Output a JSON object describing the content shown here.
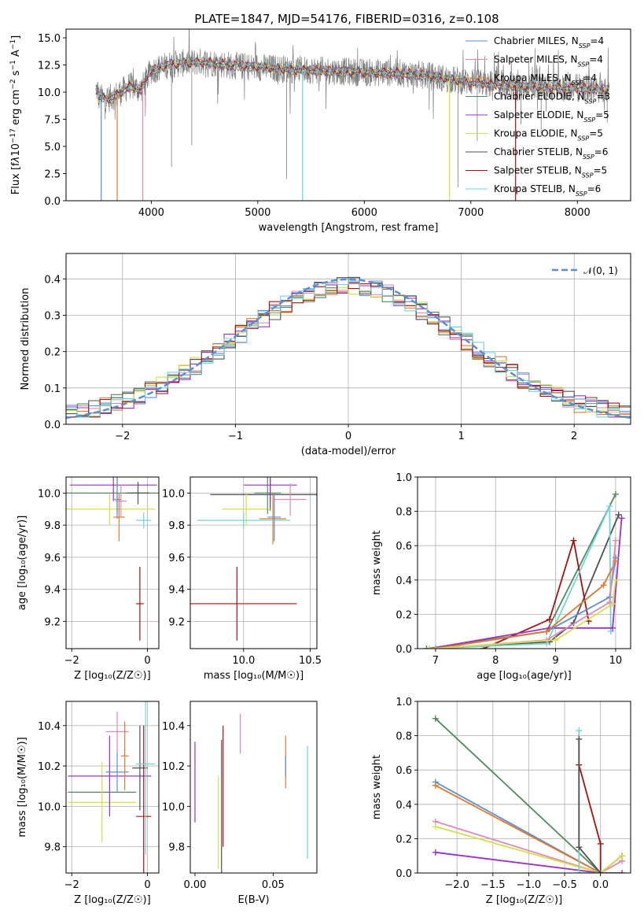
{
  "figure_title": "PLATE=1847, MJD=54176, FIBERID=0316, z=0.108",
  "colors": {
    "chabrier_miles": "#5b8ed6",
    "salpeter_miles": "#e08ab3",
    "kroupa_miles": "#e07a2a",
    "chabrier_elodie": "#4f8a5e",
    "salpeter_elodie": "#9b30c9",
    "kroupa_elodie": "#d4e04a",
    "chabrier_stelib": "#505050",
    "salpeter_stelib": "#a81010",
    "kroupa_stelib": "#6fd5d5",
    "data": "#808080",
    "grid": "#b0b0b0",
    "gaussian": "#5b8ed6"
  },
  "chart_data": [
    {
      "id": "spectrum",
      "type": "line",
      "xlabel": "wavelength [Angstrom, rest frame]",
      "ylabel_html": "Flux [f<tspan font-style='italic'>λ</tspan>10<tspan baseline-shift='super' font-size='9'>−17</tspan> erg cm<tspan baseline-shift='super' font-size='9'>−2</tspan> s<tspan baseline-shift='super' font-size='9'>−1</tspan> A<tspan baseline-shift='super' font-size='9'>−1</tspan>]",
      "xlim": [
        3200,
        8500
      ],
      "ylim": [
        0,
        15.8
      ],
      "xticks": [
        4000,
        5000,
        6000,
        7000,
        8000
      ],
      "yticks": [
        0.0,
        2.5,
        5.0,
        7.5,
        10.0,
        12.5,
        15.0
      ],
      "legend": "top-right",
      "series": [
        {
          "key": "chabrier_miles",
          "label": "Chabrier MILES, N",
          "sub": "SSP",
          "val": "=4"
        },
        {
          "key": "salpeter_miles",
          "label": "Salpeter MILES, N",
          "sub": "SSP",
          "val": "=4"
        },
        {
          "key": "kroupa_miles",
          "label": "Kroupa MILES, N",
          "sub": "SSP",
          "val": "=4"
        },
        {
          "key": "chabrier_elodie",
          "label": "Chabrier ELODIE, N",
          "sub": "SSP",
          "val": "=3"
        },
        {
          "key": "salpeter_elodie",
          "label": "Salpeter ELODIE, N",
          "sub": "SSP",
          "val": "=5"
        },
        {
          "key": "kroupa_elodie",
          "label": "Kroupa ELODIE, N",
          "sub": "SSP",
          "val": "=5"
        },
        {
          "key": "chabrier_stelib",
          "label": "Chabrier STELIB, N",
          "sub": "SSP",
          "val": "=6"
        },
        {
          "key": "salpeter_stelib",
          "label": "Salpeter STELIB, N",
          "sub": "SSP",
          "val": "=5"
        },
        {
          "key": "kroupa_stelib",
          "label": "Kroupa STELIB, N",
          "sub": "SSP",
          "val": "=6"
        }
      ],
      "continuum": [
        [
          3500,
          9.5
        ],
        [
          3600,
          9.4
        ],
        [
          3700,
          9.9
        ],
        [
          3800,
          10.6
        ],
        [
          3900,
          10.2
        ],
        [
          4000,
          12.0
        ],
        [
          4200,
          12.6
        ],
        [
          4500,
          12.8
        ],
        [
          4800,
          12.4
        ],
        [
          5000,
          12.3
        ],
        [
          5300,
          12.1
        ],
        [
          5600,
          12.0
        ],
        [
          6000,
          11.8
        ],
        [
          6300,
          11.8
        ],
        [
          6600,
          11.5
        ],
        [
          7000,
          10.9
        ],
        [
          7500,
          10.5
        ],
        [
          8000,
          10.4
        ],
        [
          8300,
          10.2
        ]
      ],
      "model_dips": [
        {
          "key": "chabrier_miles",
          "x": 3530,
          "y": 0.0
        },
        {
          "key": "kroupa_miles",
          "x": 3680,
          "y": 0.0
        },
        {
          "key": "salpeter_miles",
          "x": 3920,
          "y": 0.0
        },
        {
          "key": "kroupa_stelib",
          "x": 5420,
          "y": 0.0
        },
        {
          "key": "kroupa_elodie",
          "x": 6800,
          "y": 0.0
        },
        {
          "key": "salpeter_stelib",
          "x": 7420,
          "y": 0.0
        }
      ]
    },
    {
      "id": "residuals",
      "type": "line",
      "xlabel": "(data-model)/error",
      "ylabel": "Normed distribution",
      "xlim": [
        -2.5,
        2.5
      ],
      "ylim": [
        0,
        0.47
      ],
      "xticks": [
        -2,
        -1,
        0,
        1,
        2
      ],
      "yticks": [
        0.0,
        0.1,
        0.2,
        0.3,
        0.4
      ],
      "xtick_labels": [
        "−2",
        "−1",
        "0",
        "1",
        "2"
      ],
      "ytick_labels": [
        "0.0",
        "0.1",
        "0.2",
        "0.3",
        "0.4"
      ],
      "grid": true,
      "legend": "top-right",
      "legend_label": "𝒩(0, 1)",
      "bin_width": 0.1,
      "bin_start": -2.5
    },
    {
      "id": "age_vs_Z",
      "type": "scatter",
      "xlabel": "Z [log₁₀(Z/Z☉)]",
      "ylabel": "age  [log₁₀(age/yr)]",
      "xlim": [
        -2.15,
        0.3
      ],
      "ylim": [
        9.03,
        10.1
      ],
      "xticks": [
        -2,
        0
      ],
      "xtick_labels": [
        "−2",
        "0"
      ],
      "yticks": [
        9.2,
        9.4,
        9.6,
        9.8,
        10.0
      ],
      "ytick_labels": [
        "9.2",
        "9.4",
        "9.6",
        "9.8",
        "10.0"
      ],
      "grid": true,
      "points": [
        {
          "key": "kroupa_elodie",
          "x": -1.0,
          "y": 9.9,
          "xerr": 1.2,
          "yerr": 0.1
        },
        {
          "key": "chabrier_elodie",
          "x": -0.8,
          "y": 10.0,
          "xerr": 1.35,
          "yerr": 0.13
        },
        {
          "key": "salpeter_elodie",
          "x": -0.9,
          "y": 10.05,
          "xerr": 1.15,
          "yerr": 0.1
        },
        {
          "key": "chabrier_miles",
          "x": -0.8,
          "y": 9.96,
          "xerr": 0.1,
          "yerr": 0.12
        },
        {
          "key": "salpeter_miles",
          "x": -0.7,
          "y": 9.95,
          "xerr": 0.15,
          "yerr": 0.1
        },
        {
          "key": "kroupa_miles",
          "x": -0.75,
          "y": 9.85,
          "xerr": 0.15,
          "yerr": 0.15
        },
        {
          "key": "chabrier_stelib",
          "x": -0.25,
          "y": 10.0,
          "xerr": 0.3,
          "yerr": 0.07
        },
        {
          "key": "salpeter_stelib",
          "x": -0.2,
          "y": 9.31,
          "xerr": 0.1,
          "yerr": 0.23
        },
        {
          "key": "kroupa_stelib",
          "x": -0.1,
          "y": 9.83,
          "xerr": 0.2,
          "yerr": 0.05
        }
      ]
    },
    {
      "id": "age_vs_mass",
      "type": "scatter",
      "xlabel": "mass [log₁₀(M/M☉)]",
      "xlim": [
        9.6,
        10.55
      ],
      "ylim": [
        9.03,
        10.1
      ],
      "xticks": [
        10.0,
        10.5
      ],
      "xtick_labels": [
        "10.0",
        "10.5"
      ],
      "yticks": [
        9.2,
        9.4,
        9.6,
        9.8,
        10.0
      ],
      "ytick_labels": [
        "9.2",
        "9.4",
        "9.6",
        "9.8",
        "10.0"
      ],
      "grid": true,
      "points": [
        {
          "key": "chabrier_stelib",
          "x": 10.2,
          "y": 9.99,
          "xerr": 0.45,
          "yerr": 0.1
        },
        {
          "key": "kroupa_elodie",
          "x": 10.02,
          "y": 9.9,
          "xerr": 0.18,
          "yerr": 0.1
        },
        {
          "key": "chabrier_elodie",
          "x": 10.18,
          "y": 10.0,
          "xerr": 0.1,
          "yerr": 0.13
        },
        {
          "key": "salpeter_elodie",
          "x": 10.2,
          "y": 10.05,
          "xerr": 0.2,
          "yerr": 0.1
        },
        {
          "key": "salpeter_miles",
          "x": 10.35,
          "y": 9.96,
          "xerr": 0.12,
          "yerr": 0.1
        },
        {
          "key": "kroupa_miles",
          "x": 10.22,
          "y": 9.84,
          "xerr": 0.1,
          "yerr": 0.16
        },
        {
          "key": "kroupa_stelib",
          "x": 10.0,
          "y": 9.83,
          "xerr": 0.35,
          "yerr": 0.05
        },
        {
          "key": "salpeter_stelib",
          "x": 9.95,
          "y": 9.31,
          "xerr": 0.45,
          "yerr": 0.23
        },
        {
          "key": "chabrier_miles",
          "x": 10.23,
          "y": 9.85,
          "xerr": 0.05,
          "yerr": 0.15
        }
      ]
    },
    {
      "id": "weight_vs_age",
      "type": "line",
      "xlabel": "age  [log₁₀(age/yr)]",
      "ylabel": "mass weight",
      "xlim": [
        6.7,
        10.25
      ],
      "ylim": [
        0,
        1.0
      ],
      "xticks": [
        7,
        8,
        9,
        10
      ],
      "xtick_labels": [
        "7",
        "8",
        "9",
        "10"
      ],
      "yticks": [
        0.0,
        0.2,
        0.4,
        0.6,
        0.8,
        1.0
      ],
      "ytick_labels": [
        "0.0",
        "0.2",
        "0.4",
        "0.6",
        "0.8",
        "1.0"
      ],
      "grid": true,
      "series": [
        {
          "key": "chabrier_elodie",
          "x": [
            6.85,
            8.85,
            10.0
          ],
          "y": [
            0.0,
            0.1,
            0.9
          ]
        },
        {
          "key": "chabrier_stelib",
          "x": 6.9,
          "y": 0.0,
          "x_list": [
            6.9,
            8.9,
            9.3,
            10.05
          ],
          "y_list": [
            0.0,
            0.04,
            0.15,
            0.78
          ]
        },
        {
          "key": "salpeter_stelib",
          "x_list": [
            7.8,
            8.9,
            9.3,
            9.55
          ],
          "y_list": [
            0.0,
            0.17,
            0.63,
            0.16
          ]
        },
        {
          "key": "kroupa_stelib",
          "x_list": [
            6.9,
            8.85,
            9.9,
            9.92
          ],
          "y_list": [
            0.0,
            0.03,
            0.83,
            0.1
          ]
        },
        {
          "key": "salpeter_elodie",
          "x_list": [
            6.9,
            8.9,
            9.95,
            10.1
          ],
          "y_list": [
            0.0,
            0.12,
            0.12,
            0.76
          ]
        },
        {
          "key": "chabrier_miles",
          "x_list": [
            7.0,
            8.85,
            9.9,
            10.0
          ],
          "y_list": [
            0.0,
            0.1,
            0.3,
            0.53
          ]
        },
        {
          "key": "kroupa_miles",
          "x_list": [
            7.0,
            8.85,
            9.8,
            10.0
          ],
          "y_list": [
            0.0,
            0.1,
            0.37,
            0.51
          ]
        },
        {
          "key": "salpeter_miles",
          "x_list": [
            7.0,
            8.85,
            9.9,
            10.0
          ],
          "y_list": [
            0.0,
            0.05,
            0.27,
            0.63
          ]
        },
        {
          "key": "kroupa_elodie",
          "x_list": [
            6.9,
            9.0,
            9.95,
            10.0
          ],
          "y_list": [
            0.0,
            0.05,
            0.26,
            0.4
          ]
        }
      ]
    },
    {
      "id": "mass_vs_Z",
      "type": "scatter",
      "xlabel": "Z [log₁₀(Z/Z☉)]",
      "ylabel": "mass [log₁₀(M/M☉)]",
      "xlim": [
        -2.15,
        0.3
      ],
      "ylim": [
        9.67,
        10.52
      ],
      "xticks": [
        -2,
        0
      ],
      "xtick_labels": [
        "−2",
        "0"
      ],
      "yticks": [
        9.8,
        10.0,
        10.2,
        10.4
      ],
      "ytick_labels": [
        "9.8",
        "10.0",
        "10.2",
        "10.4"
      ],
      "grid": true,
      "points": [
        {
          "key": "chabrier_elodie",
          "x": -1.2,
          "y": 10.07,
          "xerr": 0.9,
          "yerr": 0.0
        },
        {
          "key": "kroupa_elodie",
          "x": -1.2,
          "y": 10.02,
          "xerr": 0.9,
          "yerr": 0.2
        },
        {
          "key": "salpeter_elodie",
          "x": -1.0,
          "y": 10.15,
          "xerr": 1.1,
          "yerr": 0.2
        },
        {
          "key": "chabrier_miles",
          "x": -0.8,
          "y": 10.17,
          "xerr": 0.3,
          "yerr": 0.1
        },
        {
          "key": "salpeter_miles",
          "x": -0.8,
          "y": 10.37,
          "xerr": 0.3,
          "yerr": 0.1
        },
        {
          "key": "kroupa_miles",
          "x": -0.6,
          "y": 10.25,
          "xerr": 0.1,
          "yerr": 0.17
        },
        {
          "key": "chabrier_stelib",
          "x": -0.2,
          "y": 10.19,
          "xerr": 0.2,
          "yerr": 0.21
        },
        {
          "key": "salpeter_stelib",
          "x": -0.1,
          "y": 9.95,
          "xerr": 0.2,
          "yerr": 0.45
        },
        {
          "key": "kroupa_stelib",
          "x": -0.05,
          "y": 10.21,
          "xerr": 0.25,
          "yerr": 0.45
        }
      ]
    },
    {
      "id": "mass_vs_ebv",
      "type": "scatter",
      "xlabel": "E(B-V)",
      "xlim": [
        -0.003,
        0.078
      ],
      "ylim": [
        9.67,
        10.52
      ],
      "xticks": [
        0.0,
        0.05
      ],
      "xtick_labels": [
        "0.00",
        "0.05"
      ],
      "yticks": [
        9.8,
        10.0,
        10.2,
        10.4
      ],
      "ytick_labels": [
        "9.8",
        "10.0",
        "10.2",
        "10.4"
      ],
      "points": [
        {
          "key": "salpeter_elodie",
          "x": 0.0,
          "y": 10.12,
          "yerr": 0.2
        },
        {
          "key": "kroupa_elodie",
          "x": 0.015,
          "y": 9.92,
          "yerr": 0.23
        },
        {
          "key": "chabrier_stelib",
          "x": 0.017,
          "y": 10.0,
          "yerr": 0.33
        },
        {
          "key": "salpeter_stelib",
          "x": 0.018,
          "y": 10.1,
          "yerr": 0.3
        },
        {
          "key": "salpeter_miles",
          "x": 0.029,
          "y": 10.36,
          "yerr": 0.1
        },
        {
          "key": "kroupa_miles",
          "x": 0.058,
          "y": 10.22,
          "yerr": 0.13
        },
        {
          "key": "chabrier_miles",
          "x": 0.058,
          "y": 10.2,
          "yerr": 0.05
        },
        {
          "key": "kroupa_stelib",
          "x": 0.072,
          "y": 10.02,
          "yerr": 0.28
        }
      ]
    },
    {
      "id": "weight_vs_Z",
      "type": "line",
      "xlabel": "Z [log₁₀(Z/Z☉)]",
      "ylabel": "mass weight",
      "xlim": [
        -2.55,
        0.42
      ],
      "ylim": [
        0,
        1.0
      ],
      "xticks": [
        -2.0,
        -1.5,
        -1.0,
        -0.5,
        0.0
      ],
      "xtick_labels": [
        "−2.0",
        "−1.5",
        "−1.0",
        "−0.5",
        "0.0"
      ],
      "yticks": [
        0.0,
        0.2,
        0.4,
        0.6,
        0.8,
        1.0
      ],
      "ytick_labels": [
        "0.0",
        "0.2",
        "0.4",
        "0.6",
        "0.8",
        "1.0"
      ],
      "grid": true,
      "series": [
        {
          "key": "chabrier_elodie",
          "x_list": [
            -2.3,
            0.0,
            0.3
          ],
          "y_list": [
            0.9,
            0.0,
            0.1
          ]
        },
        {
          "key": "chabrier_miles",
          "x_list": [
            -2.3,
            0.0,
            0.3
          ],
          "y_list": [
            0.53,
            0.0,
            0.1
          ]
        },
        {
          "key": "kroupa_miles",
          "x_list": [
            -2.3,
            0.0,
            0.3
          ],
          "y_list": [
            0.51,
            0.0,
            0.1
          ]
        },
        {
          "key": "salpeter_miles",
          "x_list": [
            -2.3,
            0.0,
            0.3
          ],
          "y_list": [
            0.3,
            0.0,
            0.07
          ]
        },
        {
          "key": "kroupa_elodie",
          "x_list": [
            -2.3,
            0.0,
            0.3
          ],
          "y_list": [
            0.27,
            0.0,
            0.1
          ]
        },
        {
          "key": "salpeter_elodie",
          "x_list": [
            -2.3,
            0.0,
            0.3
          ],
          "y_list": [
            0.12,
            0.0,
            0.0
          ]
        },
        {
          "key": "salpeter_stelib",
          "x_list": [
            -0.3,
            0.0,
            0.0
          ],
          "y_list": [
            0.63,
            0.17,
            0.0
          ]
        },
        {
          "key": "kroupa_stelib",
          "x_list": [
            -0.3,
            -0.3,
            0.0
          ],
          "y_list": [
            0.83,
            0.0,
            0.0
          ]
        },
        {
          "key": "chabrier_stelib",
          "x_list": [
            -0.3,
            -0.3,
            0.0
          ],
          "y_list": [
            0.78,
            0.15,
            0.0
          ]
        }
      ]
    }
  ]
}
